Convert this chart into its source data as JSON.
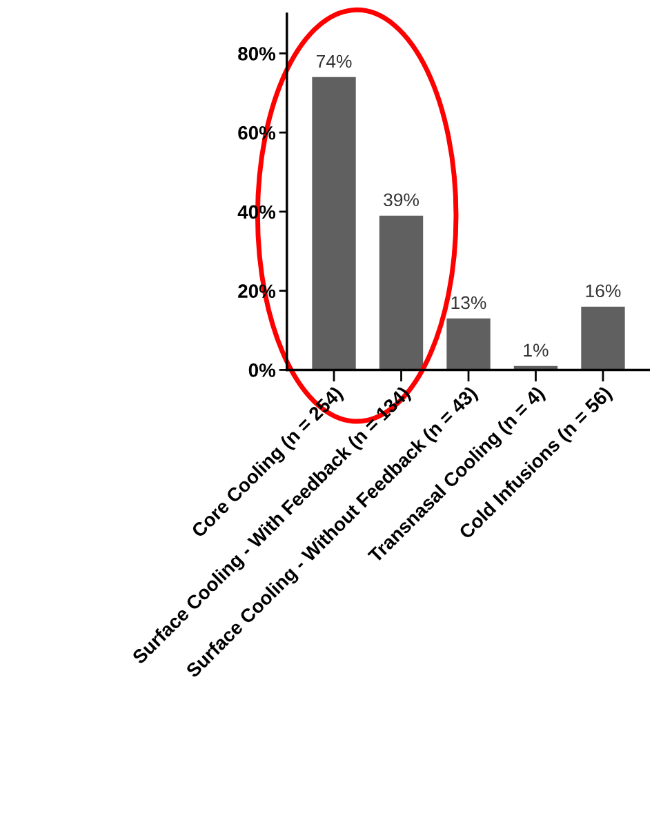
{
  "chart_data": {
    "type": "bar",
    "categories": [
      "Core Cooling (n = 254)",
      "Surface Cooling - With Feedback (n = 134)",
      "Surface Cooling - Without Feedback (n = 43)",
      "Transnasal Cooling (n = 4)",
      "Cold Infusions (n = 56)"
    ],
    "values": [
      74,
      39,
      13,
      1,
      16
    ],
    "value_labels": [
      "74%",
      "39%",
      "13%",
      "1%",
      "16%"
    ],
    "color": "#606060",
    "ylim": [
      0,
      90
    ],
    "yticks": [
      {
        "value": 0,
        "label": "0%"
      },
      {
        "value": 20,
        "label": "20%"
      },
      {
        "value": 40,
        "label": "40%"
      },
      {
        "value": 60,
        "label": "60%"
      },
      {
        "value": 80,
        "label": "80%"
      }
    ],
    "grid": false,
    "legend": false
  }
}
